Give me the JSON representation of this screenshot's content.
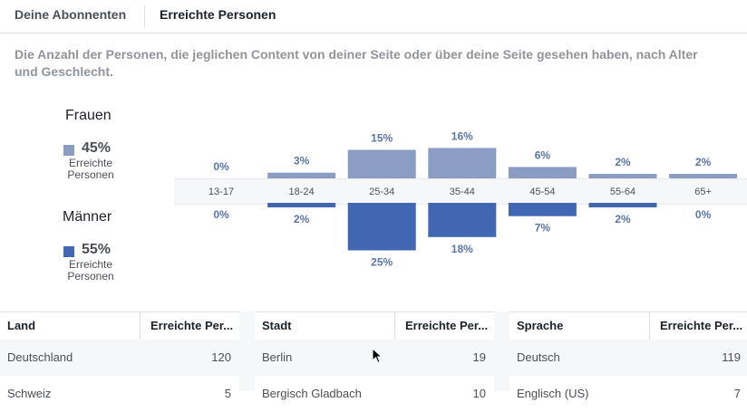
{
  "tabs": [
    {
      "label": "Deine Abonnenten",
      "active": false
    },
    {
      "label": "Erreichte Personen",
      "active": true
    }
  ],
  "description": "Die Anzahl der Personen, die jeglichen Content von deiner Seite oder über deine Seite gesehen haben, nach Alter und Geschlecht.",
  "legend": {
    "women": {
      "title": "Frauen",
      "pct": "45%",
      "sub1": "Erreichte",
      "sub2": "Personen",
      "color": "#8b9dc3"
    },
    "men": {
      "title": "Männer",
      "pct": "55%",
      "sub1": "Erreichte",
      "sub2": "Personen",
      "color": "#4267b2"
    }
  },
  "chart_data": {
    "type": "bar",
    "categories": [
      "13-17",
      "18-24",
      "25-34",
      "35-44",
      "45-54",
      "55-64",
      "65+"
    ],
    "series": [
      {
        "name": "Frauen",
        "values": [
          0,
          3,
          15,
          16,
          6,
          2,
          2
        ],
        "labels": [
          "0%",
          "3%",
          "15%",
          "16%",
          "6%",
          "2%",
          "2%"
        ],
        "color": "#8b9dc3"
      },
      {
        "name": "Männer",
        "values": [
          0,
          2,
          25,
          18,
          7,
          2,
          0
        ],
        "labels": [
          "0%",
          "2%",
          "25%",
          "18%",
          "7%",
          "2%",
          "0%"
        ],
        "color": "#4267b2"
      }
    ],
    "label_color": "#5b75a9",
    "tick_color": "#4b4f56"
  },
  "tables": [
    {
      "col1": "Land",
      "col2": "Erreichte Per...",
      "rows": [
        {
          "name": "Deutschland",
          "value": "120"
        },
        {
          "name": "Schweiz",
          "value": "5"
        }
      ]
    },
    {
      "col1": "Stadt",
      "col2": "Erreichte Per...",
      "rows": [
        {
          "name": "Berlin",
          "value": "19"
        },
        {
          "name": "Bergisch Gladbach",
          "value": "10"
        }
      ]
    },
    {
      "col1": "Sprache",
      "col2": "Erreichte Per...",
      "rows": [
        {
          "name": "Deutsch",
          "value": "119"
        },
        {
          "name": "Englisch (US)",
          "value": "7"
        }
      ]
    }
  ]
}
